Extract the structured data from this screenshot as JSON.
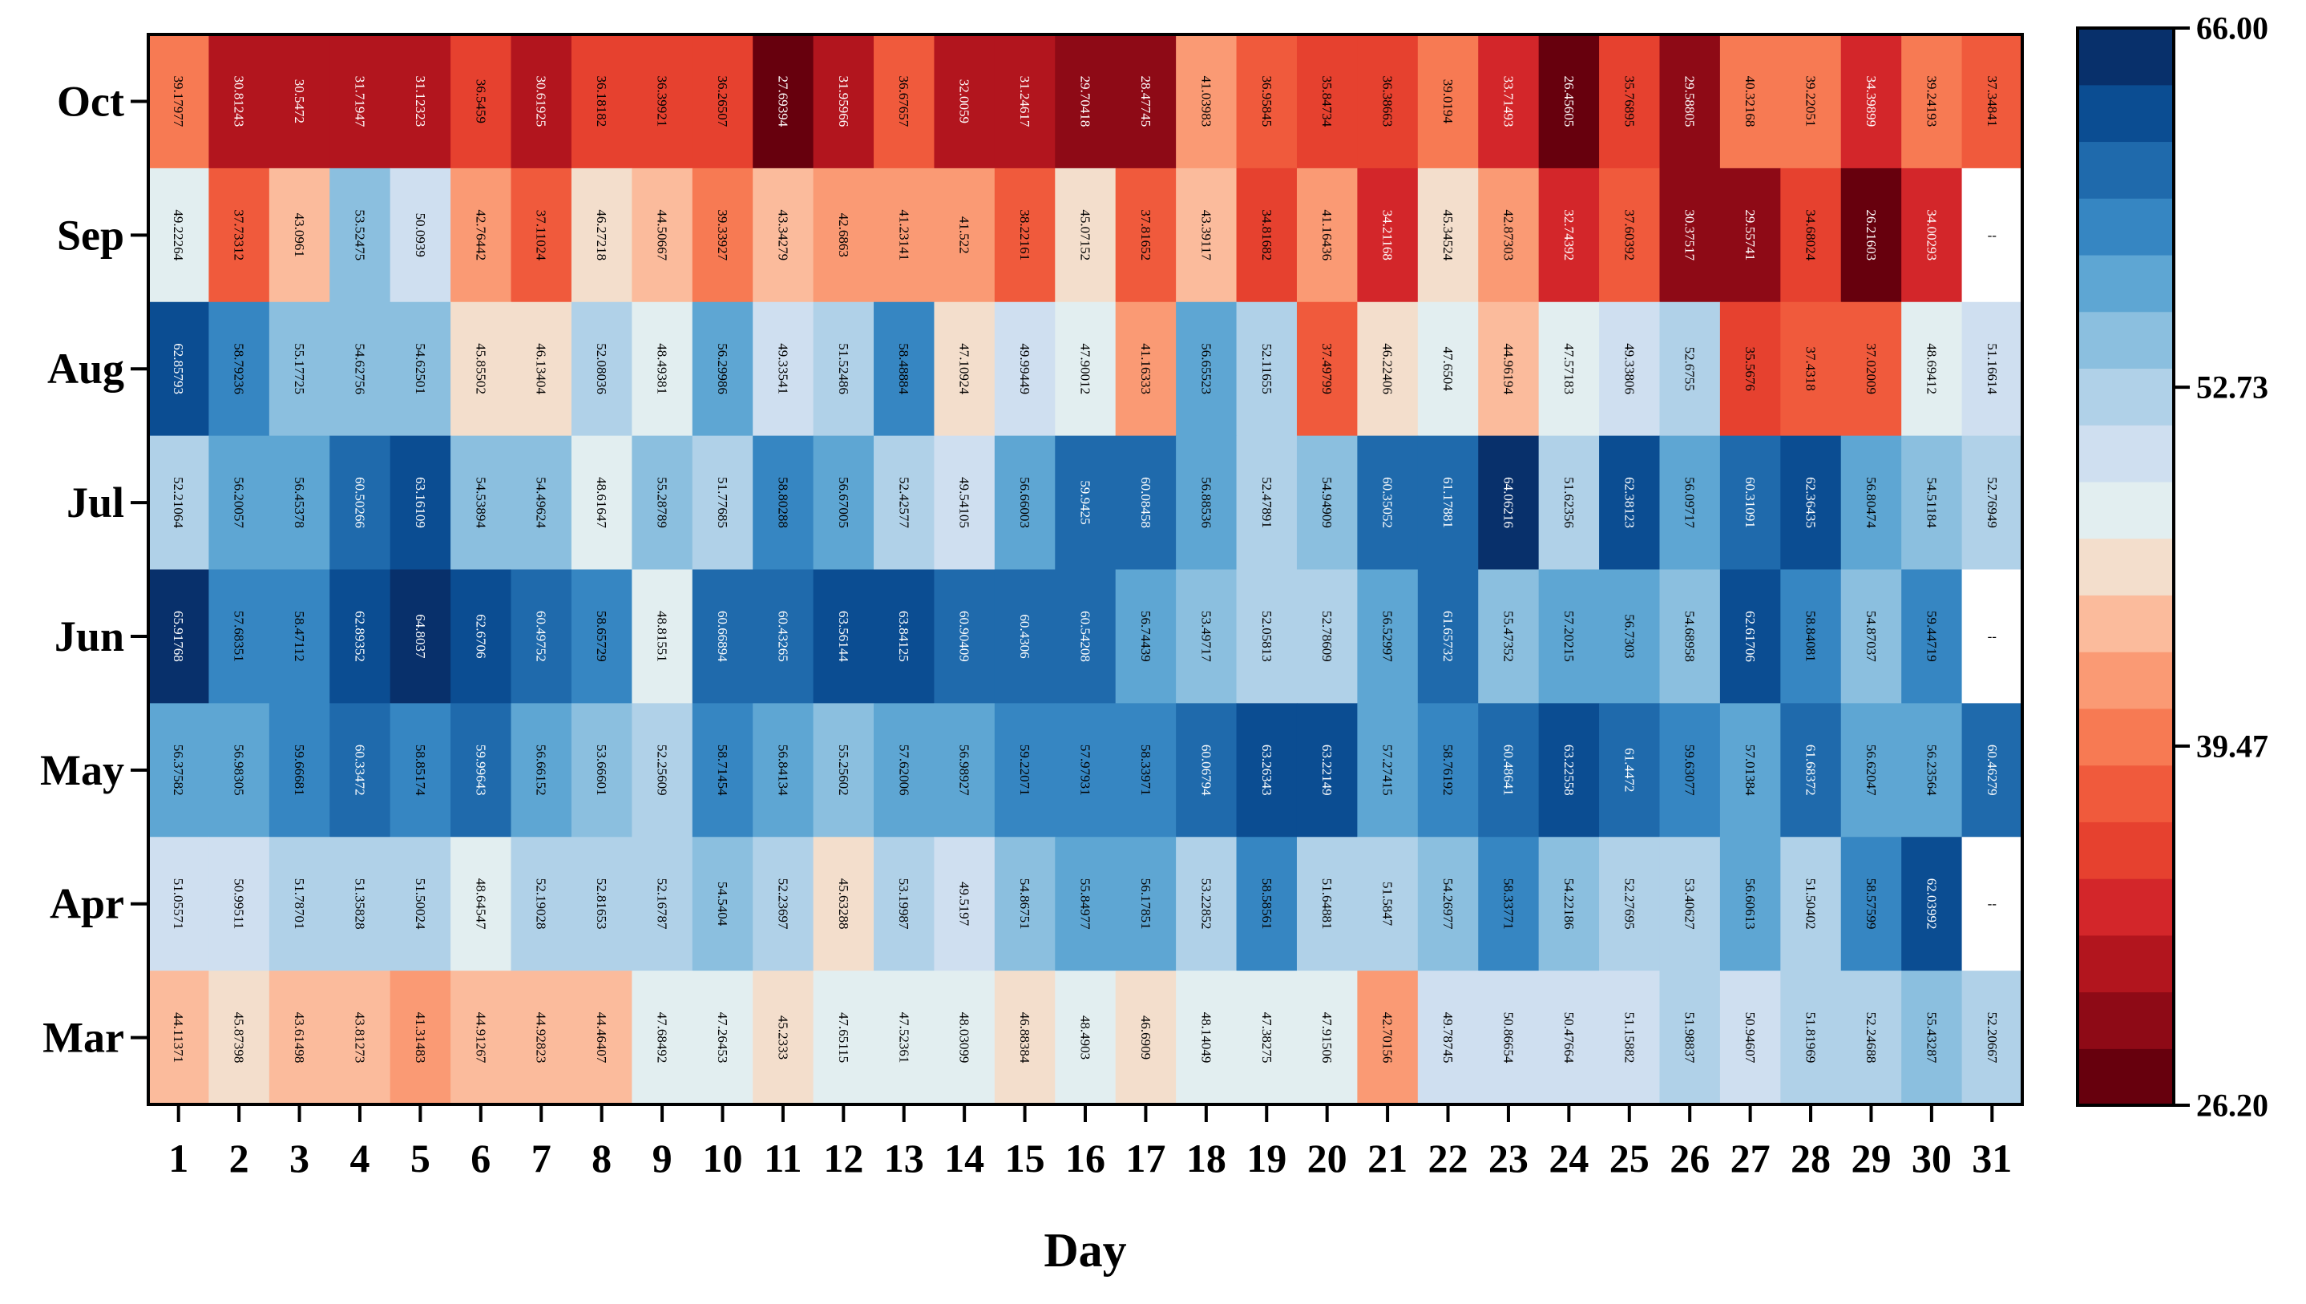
{
  "chart_data": {
    "type": "heatmap",
    "title": "",
    "xlabel": "Day",
    "ylabel": "",
    "x_categories": [
      "1",
      "2",
      "3",
      "4",
      "5",
      "6",
      "7",
      "8",
      "9",
      "10",
      "11",
      "12",
      "13",
      "14",
      "15",
      "16",
      "17",
      "18",
      "19",
      "20",
      "21",
      "22",
      "23",
      "24",
      "25",
      "26",
      "27",
      "28",
      "29",
      "30",
      "31"
    ],
    "y_categories": [
      "Oct",
      "Sep",
      "Aug",
      "Jul",
      "Jun",
      "May",
      "Apr",
      "Mar"
    ],
    "missing_label": "--",
    "values": [
      [
        "39.17977",
        "30.81243",
        "30.5472",
        "31.71947",
        "31.12323",
        "36.5459",
        "30.61925",
        "36.18182",
        "36.39921",
        "36.26507",
        "27.69394",
        "31.95966",
        "36.67657",
        "32.0059",
        "31.24617",
        "29.70418",
        "28.47745",
        "41.03983",
        "36.95845",
        "35.84734",
        "36.38663",
        "39.0194",
        "33.71493",
        "26.45605",
        "35.76895",
        "29.58805",
        "40.32168",
        "39.22051",
        "34.39899",
        "39.24193",
        "37.34841"
      ],
      [
        "49.22264",
        "37.73312",
        "43.0961",
        "53.52475",
        "50.0939",
        "42.76442",
        "37.11024",
        "46.27218",
        "44.50667",
        "39.33927",
        "43.34279",
        "42.6863",
        "41.23141",
        "41.522",
        "38.22161",
        "45.07152",
        "37.81652",
        "43.39117",
        "34.81682",
        "41.16436",
        "34.21168",
        "45.34524",
        "42.87303",
        "32.74392",
        "37.60392",
        "30.37517",
        "29.55741",
        "34.68024",
        "26.21603",
        "34.00293",
        null
      ],
      [
        "62.85793",
        "58.79236",
        "55.17725",
        "54.62756",
        "54.62501",
        "45.85502",
        "46.13404",
        "52.08036",
        "48.49381",
        "56.29986",
        "49.33541",
        "51.52486",
        "58.48884",
        "47.10924",
        "49.99449",
        "47.90012",
        "41.16333",
        "56.65523",
        "52.11655",
        "37.49799",
        "46.22406",
        "47.6504",
        "44.96194",
        "47.57183",
        "49.33806",
        "52.6755",
        "35.5676",
        "37.4318",
        "37.02009",
        "48.69412",
        "51.16614"
      ],
      [
        "52.21064",
        "56.20057",
        "56.45378",
        "60.50266",
        "63.16109",
        "54.53894",
        "54.49624",
        "48.61647",
        "55.28789",
        "51.77685",
        "58.80288",
        "56.67005",
        "52.42577",
        "49.54105",
        "56.66003",
        "59.9425",
        "60.08458",
        "56.88536",
        "52.47891",
        "54.94909",
        "60.35052",
        "61.17881",
        "64.06216",
        "51.62356",
        "62.38123",
        "56.09717",
        "60.31091",
        "62.36435",
        "56.80474",
        "54.51184",
        "52.76949"
      ],
      [
        "65.91768",
        "57.68351",
        "58.47112",
        "62.89352",
        "64.8037",
        "62.6706",
        "60.49752",
        "58.65729",
        "48.81551",
        "60.66894",
        "60.43265",
        "63.56144",
        "63.84125",
        "60.90409",
        "60.4306",
        "60.54208",
        "56.74439",
        "53.49717",
        "52.05813",
        "52.78609",
        "56.52997",
        "61.65732",
        "55.47352",
        "57.20215",
        "56.7303",
        "54.68958",
        "62.61706",
        "58.84081",
        "54.87037",
        "59.44719",
        null
      ],
      [
        "56.37582",
        "56.98305",
        "59.66681",
        "60.33472",
        "58.85174",
        "59.99643",
        "56.66152",
        "53.66601",
        "52.25609",
        "58.71454",
        "56.84134",
        "55.25602",
        "57.62006",
        "56.98927",
        "59.22071",
        "57.97931",
        "58.33971",
        "60.06794",
        "63.26343",
        "63.22149",
        "57.27415",
        "58.76192",
        "60.48641",
        "63.22558",
        "61.4472",
        "59.63077",
        "57.01384",
        "61.68372",
        "56.62047",
        "56.23564",
        "60.46279"
      ],
      [
        "51.05571",
        "50.99511",
        "51.78701",
        "51.35828",
        "51.50024",
        "48.64547",
        "52.19028",
        "52.81653",
        "52.16787",
        "54.5404",
        "52.23697",
        "45.63288",
        "53.19987",
        "49.5197",
        "54.86751",
        "55.84977",
        "56.17851",
        "53.22852",
        "58.58561",
        "51.64881",
        "51.5847",
        "54.26977",
        "58.33771",
        "54.22186",
        "52.27695",
        "53.40627",
        "56.60613",
        "51.50402",
        "58.57599",
        "62.03992",
        null
      ],
      [
        "44.11371",
        "45.87398",
        "43.61498",
        "43.81273",
        "41.31483",
        "44.91267",
        "44.92823",
        "44.46407",
        "47.68492",
        "47.26453",
        "45.2333",
        "47.65115",
        "47.52361",
        "48.03099",
        "46.88384",
        "48.4903",
        "46.6909",
        "48.14049",
        "47.38275",
        "47.91506",
        "42.70156",
        "49.78745",
        "50.86654",
        "50.47664",
        "51.15882",
        "51.98837",
        "50.94607",
        "51.81969",
        "52.24688",
        "55.43287",
        "52.20667"
      ]
    ],
    "vmin": 26.2,
    "vmax": 66.0,
    "colorbar_ticks": [
      "26.20",
      "39.47",
      "52.73",
      "66.00"
    ],
    "colormap": [
      "#67000d",
      "#8e0a16",
      "#b2151e",
      "#d3262a",
      "#e6412f",
      "#f05a3c",
      "#f77a53",
      "#fa9a74",
      "#fbbb9c",
      "#f3decc",
      "#e2eef0",
      "#cfdff0",
      "#b0d1e8",
      "#8bbfdf",
      "#5ea6d3",
      "#3686c2",
      "#1f6aac",
      "#0b4d92",
      "#08306b"
    ],
    "grid": false,
    "legend": "colorbar-right"
  }
}
